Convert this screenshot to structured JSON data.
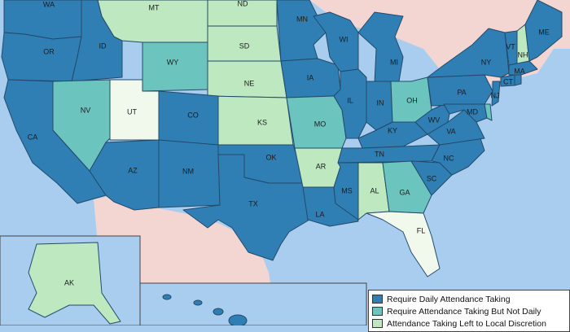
{
  "colors": {
    "daily": "#2f7fb4",
    "not_daily": "#6cc4bf",
    "local": "#bde8c0",
    "none": "#f1f8ec",
    "ocean": "#a9cdef",
    "land": "#f3d6d1"
  },
  "states": {
    "WA": {
      "label": "WA",
      "category": "daily"
    },
    "OR": {
      "label": "OR",
      "category": "daily"
    },
    "ID": {
      "label": "ID",
      "category": "daily"
    },
    "MT": {
      "label": "MT",
      "category": "local"
    },
    "ND": {
      "label": "ND",
      "category": "local"
    },
    "SD": {
      "label": "SD",
      "category": "local"
    },
    "WY": {
      "label": "WY",
      "category": "not_daily"
    },
    "NE": {
      "label": "NE",
      "category": "local"
    },
    "KS": {
      "label": "KS",
      "category": "local"
    },
    "CA": {
      "label": "CA",
      "category": "daily"
    },
    "NV": {
      "label": "NV",
      "category": "not_daily"
    },
    "UT": {
      "label": "UT",
      "category": "none"
    },
    "CO": {
      "label": "CO",
      "category": "daily"
    },
    "AZ": {
      "label": "AZ",
      "category": "daily"
    },
    "NM": {
      "label": "NM",
      "category": "daily"
    },
    "OK": {
      "label": "OK",
      "category": "daily"
    },
    "TX": {
      "label": "TX",
      "category": "daily"
    },
    "MN": {
      "label": "MN",
      "category": "daily"
    },
    "IA": {
      "label": "IA",
      "category": "daily"
    },
    "MO": {
      "label": "MO",
      "category": "not_daily"
    },
    "AR": {
      "label": "AR",
      "category": "local"
    },
    "LA": {
      "label": "LA",
      "category": "daily"
    },
    "WI": {
      "label": "WI",
      "category": "daily"
    },
    "IL": {
      "label": "IL",
      "category": "daily"
    },
    "MI": {
      "label": "MI",
      "category": "daily"
    },
    "IN": {
      "label": "IN",
      "category": "daily"
    },
    "OH": {
      "label": "OH",
      "category": "not_daily"
    },
    "KY": {
      "label": "KY",
      "category": "daily"
    },
    "TN": {
      "label": "TN",
      "category": "daily"
    },
    "MS": {
      "label": "MS",
      "category": "daily"
    },
    "AL": {
      "label": "AL",
      "category": "local"
    },
    "GA": {
      "label": "GA",
      "category": "not_daily"
    },
    "FL": {
      "label": "FL",
      "category": "none"
    },
    "SC": {
      "label": "SC",
      "category": "daily"
    },
    "NC": {
      "label": "NC",
      "category": "daily"
    },
    "VA": {
      "label": "VA",
      "category": "daily"
    },
    "WV": {
      "label": "WV",
      "category": "daily"
    },
    "PA": {
      "label": "PA",
      "category": "daily"
    },
    "NY": {
      "label": "NY",
      "category": "daily"
    },
    "MD": {
      "label": "MD",
      "category": "daily"
    },
    "DE": {
      "label": "",
      "category": "not_daily"
    },
    "NJ": {
      "label": "NJ",
      "category": "daily"
    },
    "CT": {
      "label": "CT",
      "category": "daily"
    },
    "RI": {
      "label": "",
      "category": "daily"
    },
    "MA": {
      "label": "MA",
      "category": "daily"
    },
    "VT": {
      "label": "VT",
      "category": "daily"
    },
    "NH": {
      "label": "NH",
      "category": "local"
    },
    "ME": {
      "label": "ME",
      "category": "daily"
    },
    "AK": {
      "label": "AK",
      "category": "local"
    },
    "HI": {
      "label": "",
      "category": "daily"
    }
  },
  "legend": {
    "items": [
      {
        "label": "Require Daily Attendance Taking",
        "category": "daily"
      },
      {
        "label": "Require Attendance Taking But Not Daily",
        "category": "not_daily"
      },
      {
        "label": "Attendance Taking Left to Local Discretion",
        "category": "local"
      }
    ]
  }
}
